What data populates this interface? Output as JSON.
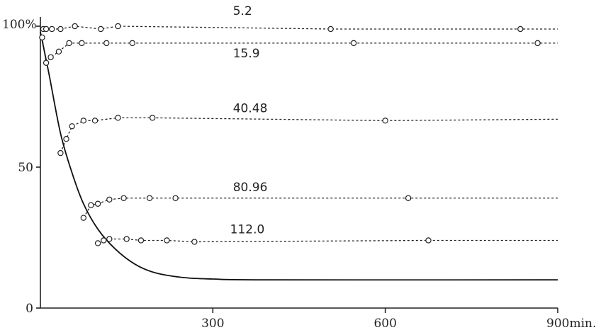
{
  "chart_data": {
    "type": "line",
    "title": "",
    "xlabel": "",
    "ylabel": "",
    "xlim": [
      0,
      900
    ],
    "ylim": [
      0,
      100
    ],
    "x_ticks": [
      {
        "value": 0,
        "label": "0"
      },
      {
        "value": 300,
        "label": "300"
      },
      {
        "value": 600,
        "label": "600"
      },
      {
        "value": 900,
        "label": "900min."
      }
    ],
    "y_ticks": [
      {
        "value": 0,
        "label": "0"
      },
      {
        "value": 50,
        "label": "50"
      },
      {
        "value": 100,
        "label": "100%"
      }
    ],
    "grid": false,
    "series": [
      {
        "name": "5.2",
        "style": "dotted",
        "label_at": [
          335,
          104
        ],
        "plateau": 99,
        "points": [
          [
            5,
            99
          ],
          [
            10,
            99
          ],
          [
            20,
            99
          ],
          [
            35,
            99
          ],
          [
            60,
            100
          ],
          [
            105,
            99
          ],
          [
            135,
            100
          ],
          [
            505,
            99
          ],
          [
            835,
            99
          ]
        ]
      },
      {
        "name": "15.9",
        "style": "dotted",
        "label_at": [
          335,
          89
        ],
        "plateau": 94,
        "points": [
          [
            3,
            96
          ],
          [
            10,
            87
          ],
          [
            18,
            89
          ],
          [
            32,
            91
          ],
          [
            50,
            94
          ],
          [
            72,
            94
          ],
          [
            115,
            94
          ],
          [
            160,
            94
          ],
          [
            545,
            94
          ],
          [
            865,
            94
          ]
        ]
      },
      {
        "name": "40.48",
        "style": "dotted",
        "label_at": [
          335,
          69.5
        ],
        "plateau": 67,
        "points": [
          [
            35,
            55
          ],
          [
            45,
            60
          ],
          [
            55,
            64.5
          ],
          [
            75,
            66.5
          ],
          [
            95,
            66.5
          ],
          [
            135,
            67.5
          ],
          [
            195,
            67.5
          ],
          [
            600,
            66.5
          ]
        ]
      },
      {
        "name": "80.96",
        "style": "dotted",
        "label_at": [
          335,
          41.5
        ],
        "plateau": 39,
        "points": [
          [
            75,
            32
          ],
          [
            88,
            36.5
          ],
          [
            100,
            37
          ],
          [
            120,
            38.5
          ],
          [
            145,
            39
          ],
          [
            190,
            39
          ],
          [
            235,
            39
          ],
          [
            640,
            39
          ]
        ]
      },
      {
        "name": "112.0",
        "style": "dotted",
        "label_at": [
          330,
          26.5
        ],
        "plateau": 24,
        "points": [
          [
            100,
            23
          ],
          [
            110,
            24
          ],
          [
            120,
            24.5
          ],
          [
            150,
            24.5
          ],
          [
            175,
            24
          ],
          [
            220,
            24
          ],
          [
            268,
            23.5
          ],
          [
            675,
            24
          ]
        ]
      },
      {
        "name": "",
        "style": "solid",
        "points": [
          [
            0,
            98
          ],
          [
            15,
            83
          ],
          [
            35,
            62
          ],
          [
            55,
            48
          ],
          [
            75,
            37
          ],
          [
            100,
            28
          ],
          [
            130,
            21
          ],
          [
            165,
            15.5
          ],
          [
            200,
            12.5
          ],
          [
            250,
            10.8
          ],
          [
            300,
            10.3
          ],
          [
            400,
            10
          ],
          [
            900,
            10
          ]
        ]
      }
    ]
  }
}
